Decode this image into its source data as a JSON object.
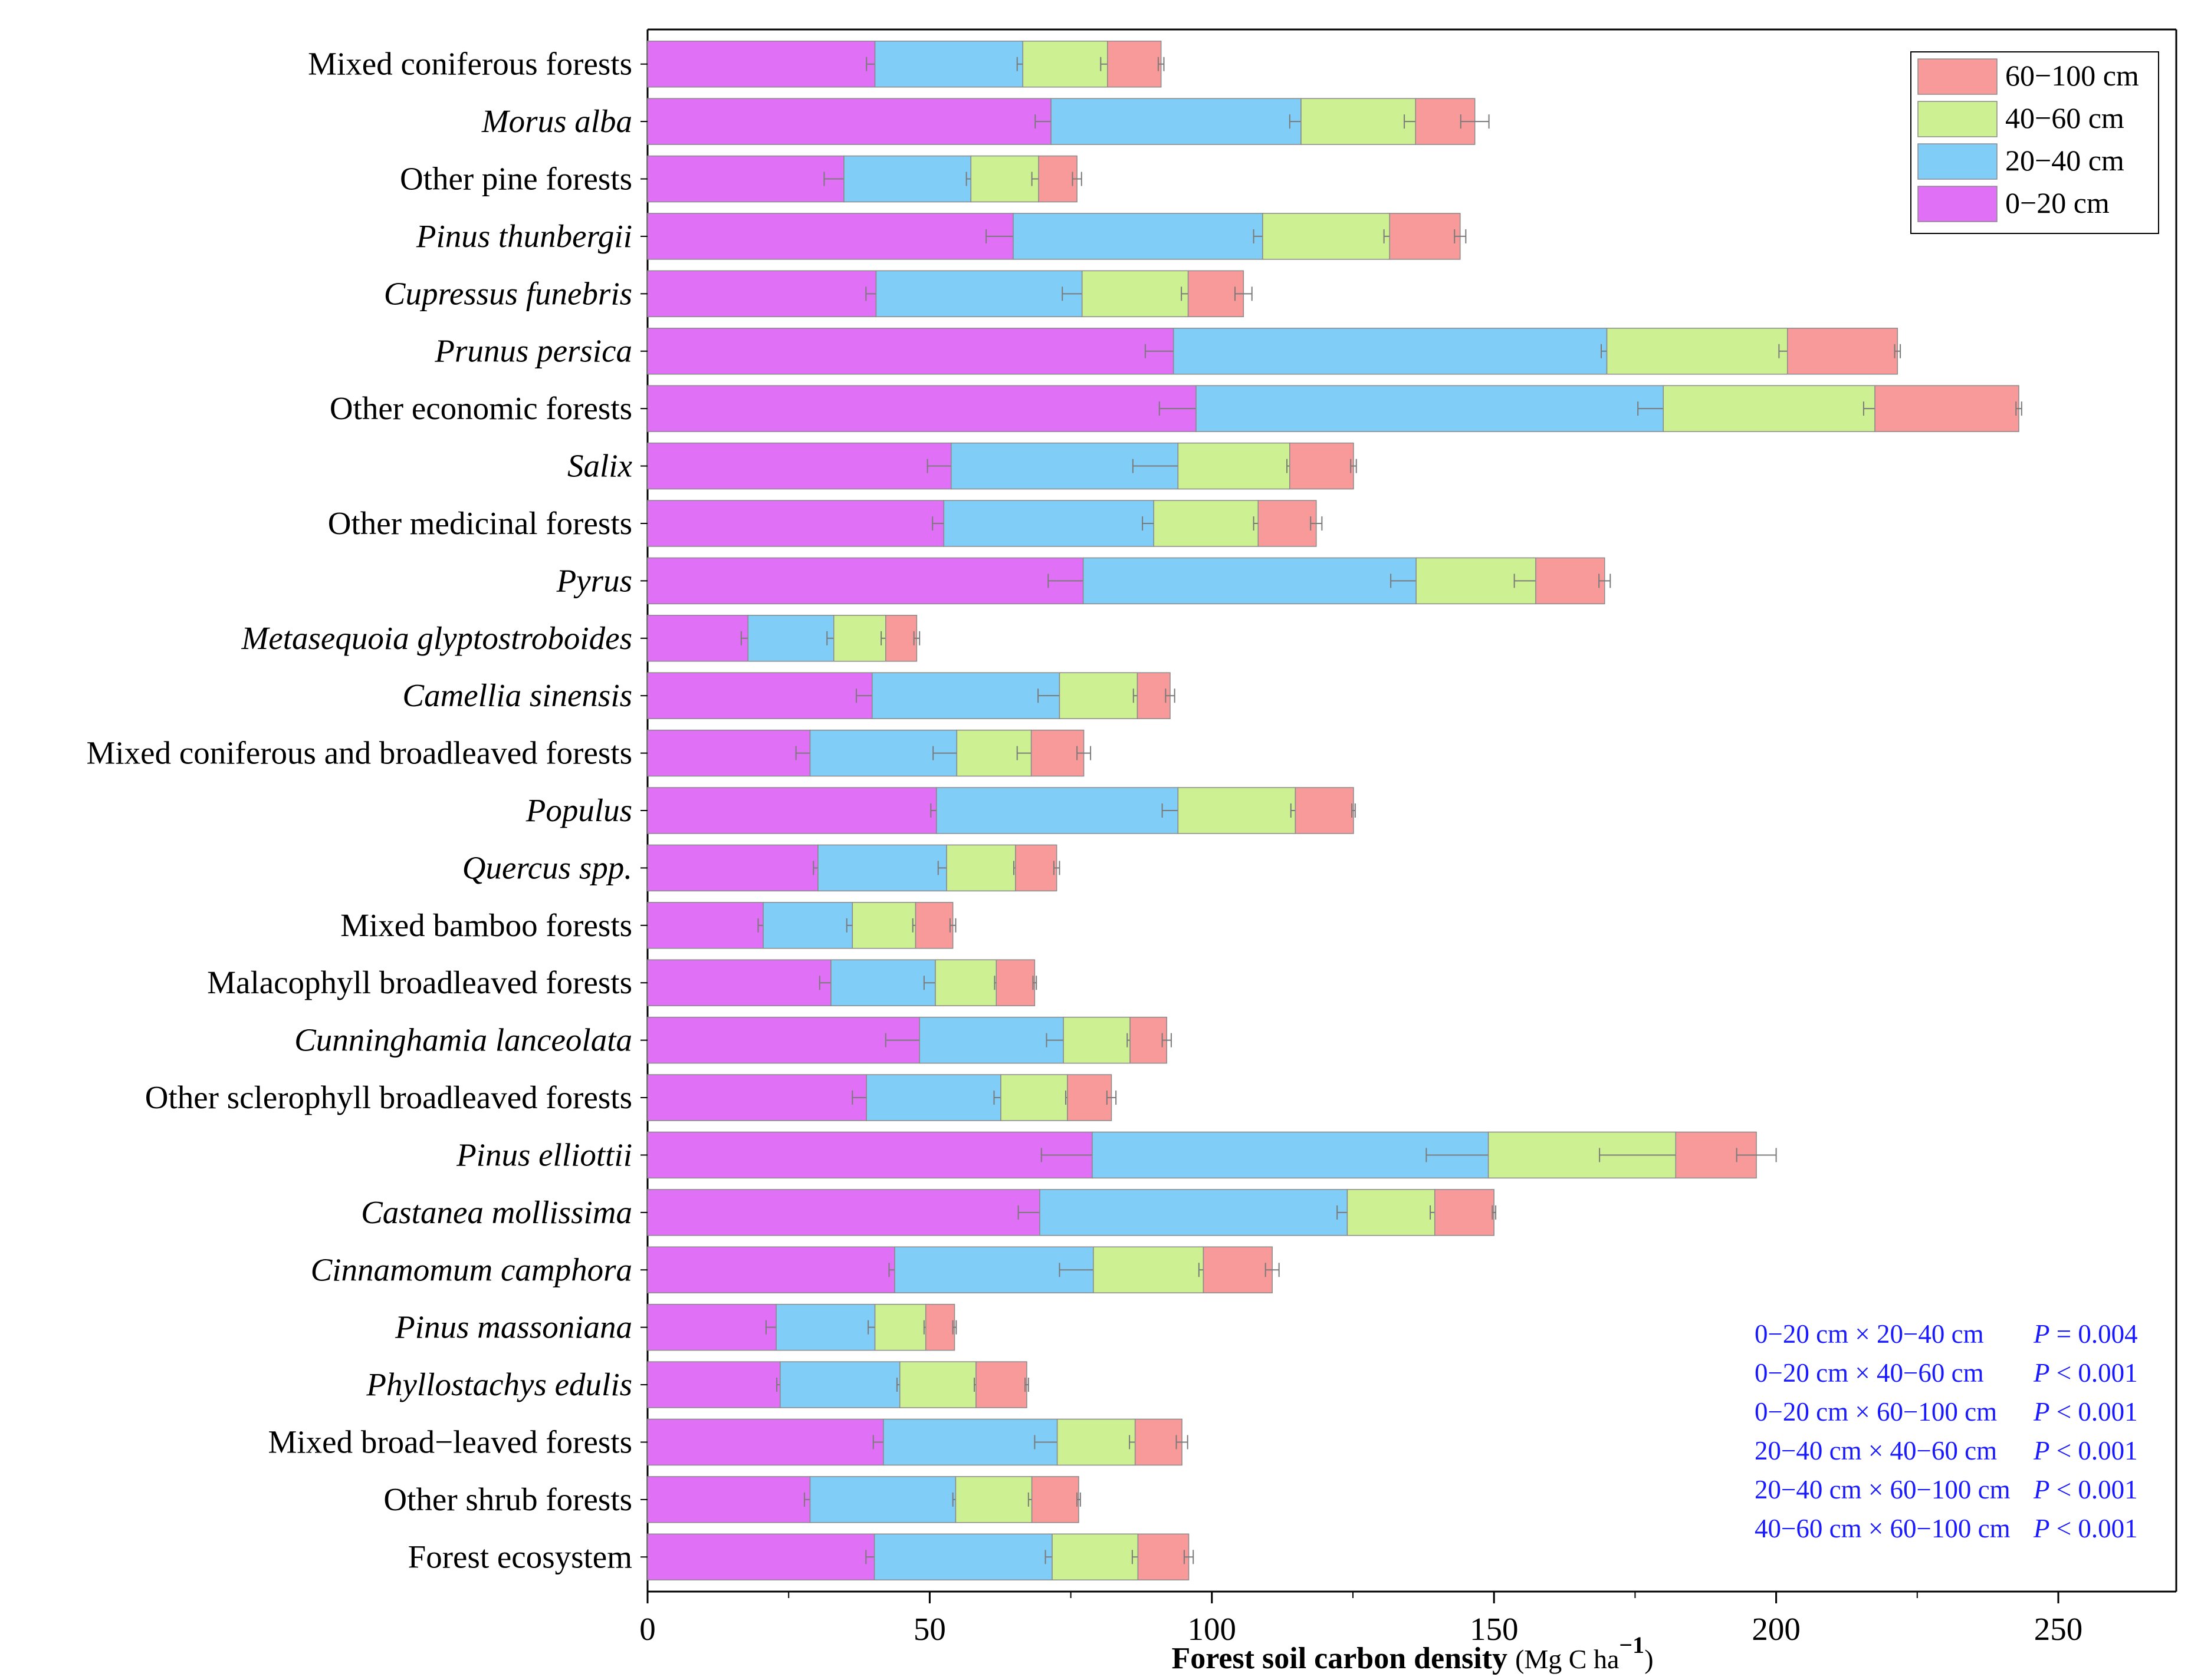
{
  "chart_data": {
    "type": "bar",
    "orientation": "horizontal",
    "stacked": true,
    "title": "",
    "xlabel_main": "Forest soil carbon density ",
    "xlabel_unit_open": "(Mg C ha",
    "xlabel_sup": "−1",
    "xlabel_unit_close": ")",
    "xlim": [
      0,
      270
    ],
    "xticks": [
      0,
      50,
      100,
      150,
      200,
      250
    ],
    "legend_position": "top-right",
    "categories": [
      "Mixed coniferous forests",
      "Morus alba",
      "Other pine forests",
      "Pinus thunbergii",
      "Cupressus funebris",
      "Prunus persica",
      "Other economic forests",
      "Salix",
      "Other medicinal forests",
      "Pyrus",
      "Metasequoia glyptostroboides",
      "Camellia sinensis",
      "Mixed coniferous and broadleaved forests",
      "Populus",
      "Quercus spp.",
      "Mixed bamboo forests",
      "Malacophyll broadleaved forests",
      "Cunninghamia lanceolata",
      "Other sclerophyll broadleaved forests",
      "Pinus elliottii",
      "Castanea mollissima",
      "Cinnamomum camphora",
      "Pinus massoniana",
      "Phyllostachys edulis",
      "Mixed broad−leaved forests",
      "Other shrub forests",
      "Forest ecosystem"
    ],
    "italic": [
      false,
      true,
      false,
      true,
      true,
      true,
      false,
      true,
      false,
      true,
      true,
      true,
      false,
      true,
      true,
      false,
      false,
      true,
      false,
      true,
      true,
      true,
      true,
      true,
      false,
      false,
      false
    ],
    "series": [
      {
        "name": "0−20 cm",
        "color": "#e070f5",
        "values": [
          40.3,
          71.5,
          34.8,
          64.8,
          40.5,
          93.2,
          97.2,
          53.8,
          52.5,
          77.2,
          17.8,
          39.8,
          28.8,
          51.2,
          30.2,
          20.5,
          32.5,
          48.2,
          38.8,
          78.8,
          69.5,
          43.8,
          22.8,
          23.5,
          41.8,
          28.8,
          40.2
        ],
        "errors": [
          1.5,
          2.8,
          3.5,
          4.8,
          1.8,
          5.0,
          6.5,
          4.2,
          2.0,
          6.2,
          1.2,
          2.8,
          2.5,
          1.0,
          0.8,
          0.9,
          2.0,
          6.0,
          2.5,
          9.0,
          3.8,
          1.0,
          1.8,
          0.6,
          1.8,
          1.0,
          1.5
        ]
      },
      {
        "name": "20−40 cm",
        "color": "#80cef8",
        "values": [
          26.2,
          44.3,
          22.5,
          44.2,
          36.5,
          76.8,
          82.8,
          40.2,
          37.2,
          59.0,
          15.2,
          33.2,
          26.0,
          42.8,
          22.8,
          15.8,
          18.5,
          25.5,
          23.8,
          70.2,
          54.5,
          35.2,
          17.5,
          21.2,
          30.8,
          25.8,
          31.5
        ],
        "errors": [
          1.0,
          2.0,
          0.8,
          1.6,
          3.5,
          1.0,
          4.5,
          8.0,
          2.0,
          4.5,
          1.2,
          3.8,
          4.2,
          2.8,
          1.5,
          1.0,
          2.0,
          3.0,
          1.2,
          11.0,
          1.8,
          6.0,
          1.2,
          0.5,
          4.0,
          0.5,
          1.2
        ]
      },
      {
        "name": "40−60 cm",
        "color": "#cdf092",
        "values": [
          15.0,
          20.3,
          12.0,
          22.5,
          18.8,
          32.0,
          37.5,
          19.8,
          18.5,
          21.2,
          9.2,
          13.8,
          13.2,
          20.8,
          12.2,
          11.2,
          10.8,
          11.8,
          11.8,
          33.2,
          15.5,
          19.5,
          9.0,
          13.5,
          13.8,
          13.5,
          15.2
        ],
        "errors": [
          1.2,
          2.0,
          1.2,
          1.0,
          1.2,
          1.5,
          2.0,
          0.5,
          0.8,
          3.8,
          0.8,
          0.7,
          2.5,
          0.8,
          0.3,
          0.5,
          0.3,
          0.5,
          0.3,
          13.5,
          0.8,
          0.8,
          0.3,
          0.3,
          1.0,
          0.6,
          1.0
        ]
      },
      {
        "name": "60−100 cm",
        "color": "#f99a9a",
        "values": [
          9.5,
          10.5,
          6.8,
          12.5,
          9.8,
          19.5,
          25.5,
          11.3,
          10.3,
          12.2,
          5.5,
          5.8,
          9.3,
          10.3,
          7.3,
          6.6,
          6.8,
          6.5,
          7.8,
          14.3,
          10.5,
          12.2,
          5.1,
          9.0,
          8.3,
          8.3,
          9.0
        ],
        "errors": [
          0.5,
          2.5,
          0.8,
          1.0,
          1.5,
          0.5,
          0.5,
          0.5,
          1.0,
          1.0,
          0.5,
          0.8,
          1.2,
          0.3,
          0.5,
          0.5,
          0.3,
          0.8,
          0.8,
          3.5,
          0.3,
          1.2,
          0.3,
          0.3,
          1.0,
          0.3,
          0.8
        ]
      }
    ],
    "legend_entries": [
      {
        "label": "60−100 cm",
        "color": "#f99a9a"
      },
      {
        "label": "40−60 cm",
        "color": "#cdf092"
      },
      {
        "label": "20−40 cm",
        "color": "#80cef8"
      },
      {
        "label": "0−20 cm",
        "color": "#e070f5"
      }
    ],
    "annotations": [
      {
        "pair": "0−20 cm × 20−40 cm",
        "p_sym": "P",
        "p_rel": "= 0.004"
      },
      {
        "pair": "0−20 cm × 40−60 cm",
        "p_sym": "P",
        "p_rel": "< 0.001"
      },
      {
        "pair": "0−20 cm × 60−100 cm",
        "p_sym": "P",
        "p_rel": "< 0.001"
      },
      {
        "pair": "20−40 cm × 40−60 cm",
        "p_sym": "P",
        "p_rel": "< 0.001"
      },
      {
        "pair": "20−40 cm × 60−100 cm",
        "p_sym": "P",
        "p_rel": "< 0.001"
      },
      {
        "pair": "40−60 cm × 60−100 cm",
        "p_sym": "P",
        "p_rel": "< 0.001"
      }
    ],
    "annotation_color": "#1a1aff",
    "grid": false
  }
}
